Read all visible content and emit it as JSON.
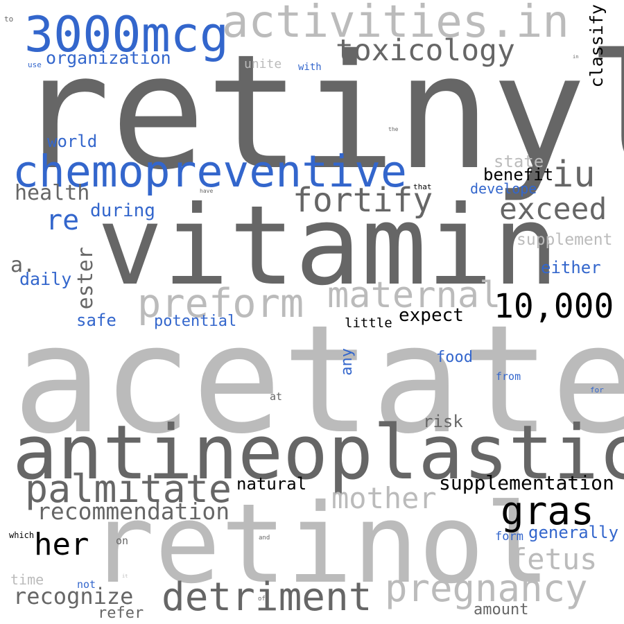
{
  "colors": {
    "dark": "#666666",
    "light": "#bbbbbb",
    "blue": "#3366cc",
    "black": "#000000"
  },
  "words": {
    "retinyl": "retinyl",
    "vitamin": "vitamin",
    "acetate": "acetate",
    "antineoplastic": "antineoplastic",
    "retinol": "retinol",
    "chemopreventive": "chemopreventive",
    "activities_in": "activities.in",
    "mcg3000": "3000mcg",
    "toxicology": "toxicology",
    "organization": "organization",
    "unite": "unite",
    "with": "with",
    "use": "use",
    "to": "to",
    "in_small": "in",
    "classify": "classify",
    "world": "world",
    "the": "the",
    "state": "state",
    "iu": "iu",
    "benefit": "benefit",
    "health": "health",
    "have": "have",
    "that": "that",
    "develope": "develope",
    "fortify": "fortify",
    "exceed": "exceed",
    "during": "during",
    "re": "re",
    "supplement": "supplement",
    "a": "a.",
    "ester": "ester",
    "either": "either",
    "daily": "daily",
    "preform": "preform",
    "maternal": "maternal",
    "n10000": "10,000",
    "safe": "safe",
    "potential": "potential",
    "expect": "expect",
    "little": "little",
    "any": "any",
    "food": "food",
    "from": "from",
    "for": "for",
    "at": "at",
    "risk": "risk",
    "palmitate": "palmitate",
    "natural": "natural",
    "supplementation": "supplementation",
    "mother": "mother",
    "recommendation": "recommendation",
    "gras": "gras",
    "her": "her",
    "which": "which",
    "on": "on",
    "and": "and",
    "form": "form",
    "generally": "generally",
    "fetus": "fetus",
    "time": "time",
    "not": "not",
    "it": "it",
    "of": "of",
    "recognize": "recognize",
    "detriment": "detriment",
    "pregnancy": "pregnancy",
    "refer": "refer",
    "amount": "amount"
  }
}
